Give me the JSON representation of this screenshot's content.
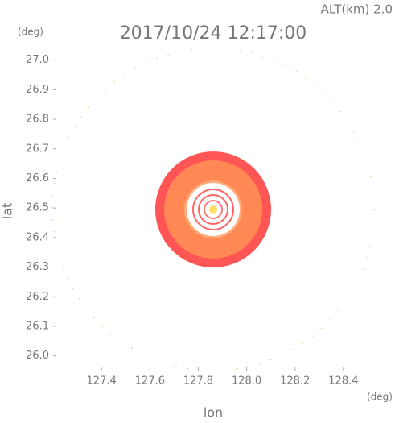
{
  "chart_data": {
    "type": "radar-map",
    "title": "2017/10/24 12:17:00",
    "subtitle": "ALT(km) 2.0",
    "xlabel": "lon",
    "ylabel": "lat",
    "x_unit": "(deg)",
    "y_unit": "(deg)",
    "xlim": [
      127.2,
      128.53
    ],
    "ylim": [
      25.95,
      27.04
    ],
    "xticks": [
      127.4,
      127.6,
      127.8,
      {
        "value": 128.0,
        "label": "128.0"
      },
      128.2,
      128.4
    ],
    "yticks": [
      {
        "value": 26.0,
        "label": "26.0"
      },
      26.1,
      26.2,
      26.3,
      26.4,
      26.5,
      26.6,
      26.7,
      26.8,
      26.9,
      {
        "value": 27.0,
        "label": "27.0"
      }
    ]
  }
}
